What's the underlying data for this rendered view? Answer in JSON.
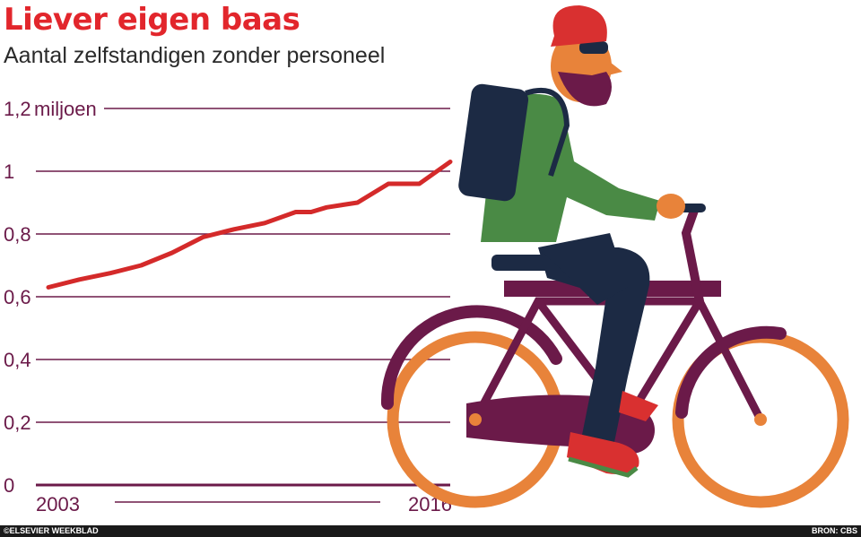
{
  "header": {
    "title": "Liever eigen baas",
    "subtitle": "Aantal zelfstandigen zonder personeel"
  },
  "footer": {
    "credit": "©ELSEVIER WEEKBLAD",
    "source": "BRON: CBS"
  },
  "colors": {
    "title": "#e2262c",
    "line": "#d42a2a",
    "grid": "#6b1a49",
    "bike_frame": "#6b1a49",
    "wheel": "#e8833a",
    "jacket": "#4a8a45",
    "backpack": "#1c2a44",
    "hat": "#d93030"
  },
  "illustration": {
    "icon": "cyclist-with-beard-icon"
  },
  "chart_data": {
    "type": "line",
    "unit_label": "miljoen",
    "y_tick_labels": [
      "0",
      "0,2",
      "0,4",
      "0,6",
      "0,8",
      "1",
      "1,2"
    ],
    "x_tick_labels": [
      "2003",
      "2016"
    ],
    "ylim": [
      0,
      1.2
    ],
    "xlim": [
      2003,
      2016
    ],
    "grid": true,
    "x": [
      2003,
      2004,
      2005,
      2006,
      2007,
      2008,
      2009,
      2010,
      2011,
      2011.5,
      2012,
      2013,
      2014,
      2015,
      2016
    ],
    "values": [
      0.63,
      0.655,
      0.675,
      0.7,
      0.74,
      0.79,
      0.815,
      0.835,
      0.87,
      0.87,
      0.885,
      0.9,
      0.96,
      0.96,
      1.03
    ]
  }
}
